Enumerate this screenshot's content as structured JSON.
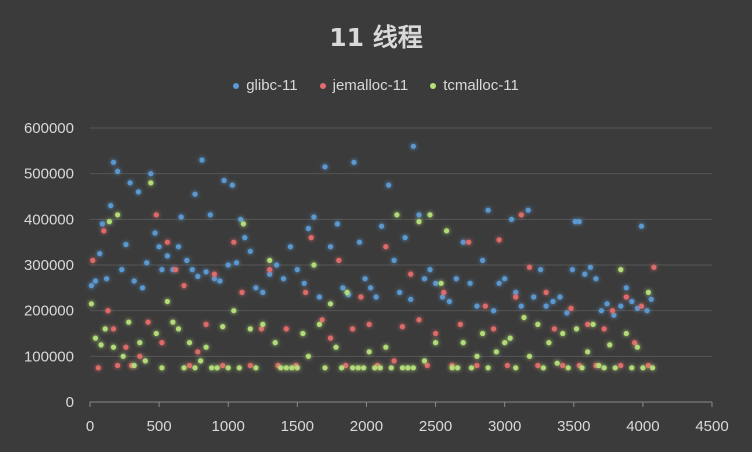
{
  "chart_data": {
    "type": "scatter",
    "title": "11 线程",
    "xlabel": "",
    "ylabel": "",
    "xlim": [
      0,
      4500
    ],
    "ylim": [
      0,
      600000
    ],
    "x_ticks": [
      "0",
      "500",
      "1000",
      "1500",
      "2000",
      "2500",
      "3000",
      "3500",
      "4000",
      "4500"
    ],
    "y_ticks": [
      "0",
      "100000",
      "200000",
      "300000",
      "400000",
      "500000",
      "600000"
    ],
    "grid": "horizontal",
    "legend_position": "top",
    "series": [
      {
        "name": "glibc-11",
        "color": "#5b9bd5",
        "points": [
          [
            10,
            255000
          ],
          [
            40,
            265000
          ],
          [
            70,
            325000
          ],
          [
            90,
            390000
          ],
          [
            120,
            270000
          ],
          [
            150,
            430000
          ],
          [
            170,
            525000
          ],
          [
            200,
            505000
          ],
          [
            230,
            290000
          ],
          [
            260,
            345000
          ],
          [
            290,
            480000
          ],
          [
            320,
            265000
          ],
          [
            350,
            460000
          ],
          [
            380,
            250000
          ],
          [
            410,
            305000
          ],
          [
            440,
            500000
          ],
          [
            470,
            370000
          ],
          [
            500,
            340000
          ],
          [
            520,
            290000
          ],
          [
            560,
            320000
          ],
          [
            600,
            290000
          ],
          [
            640,
            340000
          ],
          [
            660,
            405000
          ],
          [
            700,
            310000
          ],
          [
            740,
            290000
          ],
          [
            760,
            455000
          ],
          [
            780,
            275000
          ],
          [
            810,
            530000
          ],
          [
            840,
            285000
          ],
          [
            870,
            410000
          ],
          [
            900,
            270000
          ],
          [
            940,
            265000
          ],
          [
            970,
            485000
          ],
          [
            1000,
            300000
          ],
          [
            1030,
            475000
          ],
          [
            1060,
            305000
          ],
          [
            1090,
            400000
          ],
          [
            1120,
            360000
          ],
          [
            1160,
            330000
          ],
          [
            1200,
            250000
          ],
          [
            1250,
            240000
          ],
          [
            1300,
            280000
          ],
          [
            1350,
            300000
          ],
          [
            1400,
            270000
          ],
          [
            1450,
            340000
          ],
          [
            1500,
            290000
          ],
          [
            1550,
            260000
          ],
          [
            1580,
            380000
          ],
          [
            1620,
            405000
          ],
          [
            1660,
            230000
          ],
          [
            1700,
            515000
          ],
          [
            1740,
            340000
          ],
          [
            1790,
            390000
          ],
          [
            1830,
            250000
          ],
          [
            1870,
            235000
          ],
          [
            1910,
            525000
          ],
          [
            1950,
            350000
          ],
          [
            1990,
            270000
          ],
          [
            2030,
            250000
          ],
          [
            2070,
            230000
          ],
          [
            2110,
            385000
          ],
          [
            2160,
            475000
          ],
          [
            2200,
            310000
          ],
          [
            2240,
            240000
          ],
          [
            2280,
            360000
          ],
          [
            2320,
            225000
          ],
          [
            2340,
            560000
          ],
          [
            2380,
            410000
          ],
          [
            2420,
            270000
          ],
          [
            2460,
            290000
          ],
          [
            2500,
            260000
          ],
          [
            2550,
            230000
          ],
          [
            2600,
            220000
          ],
          [
            2650,
            270000
          ],
          [
            2700,
            350000
          ],
          [
            2750,
            260000
          ],
          [
            2800,
            210000
          ],
          [
            2840,
            310000
          ],
          [
            2880,
            420000
          ],
          [
            2920,
            200000
          ],
          [
            2960,
            260000
          ],
          [
            3000,
            270000
          ],
          [
            3050,
            400000
          ],
          [
            3080,
            240000
          ],
          [
            3120,
            210000
          ],
          [
            3170,
            420000
          ],
          [
            3210,
            230000
          ],
          [
            3260,
            290000
          ],
          [
            3300,
            210000
          ],
          [
            3350,
            220000
          ],
          [
            3400,
            230000
          ],
          [
            3450,
            195000
          ],
          [
            3490,
            290000
          ],
          [
            3510,
            395000
          ],
          [
            3540,
            395000
          ],
          [
            3580,
            280000
          ],
          [
            3620,
            295000
          ],
          [
            3660,
            270000
          ],
          [
            3700,
            200000
          ],
          [
            3740,
            215000
          ],
          [
            3790,
            190000
          ],
          [
            3840,
            210000
          ],
          [
            3880,
            250000
          ],
          [
            3920,
            220000
          ],
          [
            3960,
            205000
          ],
          [
            3990,
            385000
          ],
          [
            4030,
            200000
          ],
          [
            4060,
            225000
          ]
        ]
      },
      {
        "name": "jemalloc-11",
        "color": "#e46c6c",
        "points": [
          [
            20,
            310000
          ],
          [
            60,
            75000
          ],
          [
            100,
            375000
          ],
          [
            130,
            200000
          ],
          [
            170,
            160000
          ],
          [
            200,
            80000
          ],
          [
            260,
            120000
          ],
          [
            300,
            80000
          ],
          [
            360,
            100000
          ],
          [
            420,
            175000
          ],
          [
            480,
            410000
          ],
          [
            520,
            130000
          ],
          [
            560,
            350000
          ],
          [
            620,
            290000
          ],
          [
            680,
            255000
          ],
          [
            720,
            80000
          ],
          [
            780,
            110000
          ],
          [
            840,
            170000
          ],
          [
            900,
            280000
          ],
          [
            960,
            80000
          ],
          [
            1040,
            350000
          ],
          [
            1100,
            240000
          ],
          [
            1160,
            80000
          ],
          [
            1240,
            160000
          ],
          [
            1300,
            290000
          ],
          [
            1360,
            80000
          ],
          [
            1420,
            160000
          ],
          [
            1490,
            80000
          ],
          [
            1560,
            240000
          ],
          [
            1600,
            360000
          ],
          [
            1680,
            180000
          ],
          [
            1740,
            140000
          ],
          [
            1800,
            310000
          ],
          [
            1850,
            80000
          ],
          [
            1900,
            160000
          ],
          [
            1960,
            230000
          ],
          [
            2020,
            170000
          ],
          [
            2080,
            80000
          ],
          [
            2140,
            340000
          ],
          [
            2200,
            90000
          ],
          [
            2260,
            165000
          ],
          [
            2320,
            280000
          ],
          [
            2380,
            180000
          ],
          [
            2440,
            80000
          ],
          [
            2500,
            150000
          ],
          [
            2560,
            240000
          ],
          [
            2620,
            80000
          ],
          [
            2680,
            170000
          ],
          [
            2740,
            350000
          ],
          [
            2800,
            80000
          ],
          [
            2860,
            210000
          ],
          [
            2920,
            160000
          ],
          [
            2960,
            355000
          ],
          [
            3020,
            80000
          ],
          [
            3080,
            230000
          ],
          [
            3120,
            410000
          ],
          [
            3180,
            295000
          ],
          [
            3240,
            80000
          ],
          [
            3300,
            240000
          ],
          [
            3360,
            160000
          ],
          [
            3420,
            80000
          ],
          [
            3480,
            205000
          ],
          [
            3540,
            80000
          ],
          [
            3600,
            170000
          ],
          [
            3660,
            80000
          ],
          [
            3720,
            160000
          ],
          [
            3780,
            200000
          ],
          [
            3840,
            80000
          ],
          [
            3880,
            230000
          ],
          [
            3940,
            130000
          ],
          [
            3990,
            210000
          ],
          [
            4040,
            80000
          ],
          [
            4080,
            295000
          ]
        ]
      },
      {
        "name": "tcmalloc-11",
        "color": "#b5e07a",
        "points": [
          [
            10,
            215000
          ],
          [
            40,
            140000
          ],
          [
            80,
            125000
          ],
          [
            110,
            160000
          ],
          [
            140,
            395000
          ],
          [
            170,
            120000
          ],
          [
            200,
            410000
          ],
          [
            240,
            100000
          ],
          [
            280,
            175000
          ],
          [
            320,
            80000
          ],
          [
            360,
            130000
          ],
          [
            400,
            90000
          ],
          [
            440,
            480000
          ],
          [
            480,
            150000
          ],
          [
            520,
            75000
          ],
          [
            560,
            220000
          ],
          [
            600,
            175000
          ],
          [
            640,
            160000
          ],
          [
            680,
            75000
          ],
          [
            720,
            130000
          ],
          [
            760,
            75000
          ],
          [
            800,
            90000
          ],
          [
            840,
            120000
          ],
          [
            880,
            75000
          ],
          [
            920,
            75000
          ],
          [
            960,
            165000
          ],
          [
            1000,
            75000
          ],
          [
            1040,
            200000
          ],
          [
            1080,
            75000
          ],
          [
            1110,
            390000
          ],
          [
            1160,
            160000
          ],
          [
            1200,
            75000
          ],
          [
            1250,
            170000
          ],
          [
            1300,
            310000
          ],
          [
            1340,
            130000
          ],
          [
            1380,
            75000
          ],
          [
            1420,
            75000
          ],
          [
            1460,
            75000
          ],
          [
            1500,
            75000
          ],
          [
            1540,
            150000
          ],
          [
            1580,
            100000
          ],
          [
            1620,
            300000
          ],
          [
            1660,
            170000
          ],
          [
            1700,
            75000
          ],
          [
            1740,
            215000
          ],
          [
            1780,
            120000
          ],
          [
            1820,
            75000
          ],
          [
            1860,
            240000
          ],
          [
            1900,
            75000
          ],
          [
            1940,
            75000
          ],
          [
            1980,
            75000
          ],
          [
            2020,
            110000
          ],
          [
            2060,
            75000
          ],
          [
            2100,
            75000
          ],
          [
            2140,
            120000
          ],
          [
            2180,
            75000
          ],
          [
            2220,
            410000
          ],
          [
            2260,
            75000
          ],
          [
            2300,
            75000
          ],
          [
            2340,
            75000
          ],
          [
            2380,
            395000
          ],
          [
            2420,
            90000
          ],
          [
            2460,
            410000
          ],
          [
            2500,
            130000
          ],
          [
            2540,
            260000
          ],
          [
            2580,
            375000
          ],
          [
            2620,
            75000
          ],
          [
            2660,
            75000
          ],
          [
            2700,
            130000
          ],
          [
            2760,
            75000
          ],
          [
            2800,
            100000
          ],
          [
            2840,
            150000
          ],
          [
            2880,
            75000
          ],
          [
            2940,
            110000
          ],
          [
            3000,
            130000
          ],
          [
            3040,
            140000
          ],
          [
            3080,
            75000
          ],
          [
            3140,
            185000
          ],
          [
            3180,
            100000
          ],
          [
            3240,
            170000
          ],
          [
            3280,
            75000
          ],
          [
            3320,
            130000
          ],
          [
            3380,
            85000
          ],
          [
            3420,
            150000
          ],
          [
            3460,
            75000
          ],
          [
            3520,
            160000
          ],
          [
            3560,
            75000
          ],
          [
            3600,
            110000
          ],
          [
            3640,
            170000
          ],
          [
            3680,
            80000
          ],
          [
            3720,
            75000
          ],
          [
            3760,
            125000
          ],
          [
            3800,
            75000
          ],
          [
            3840,
            290000
          ],
          [
            3880,
            150000
          ],
          [
            3920,
            75000
          ],
          [
            3960,
            120000
          ],
          [
            4000,
            75000
          ],
          [
            4040,
            240000
          ],
          [
            4070,
            75000
          ]
        ]
      }
    ]
  }
}
